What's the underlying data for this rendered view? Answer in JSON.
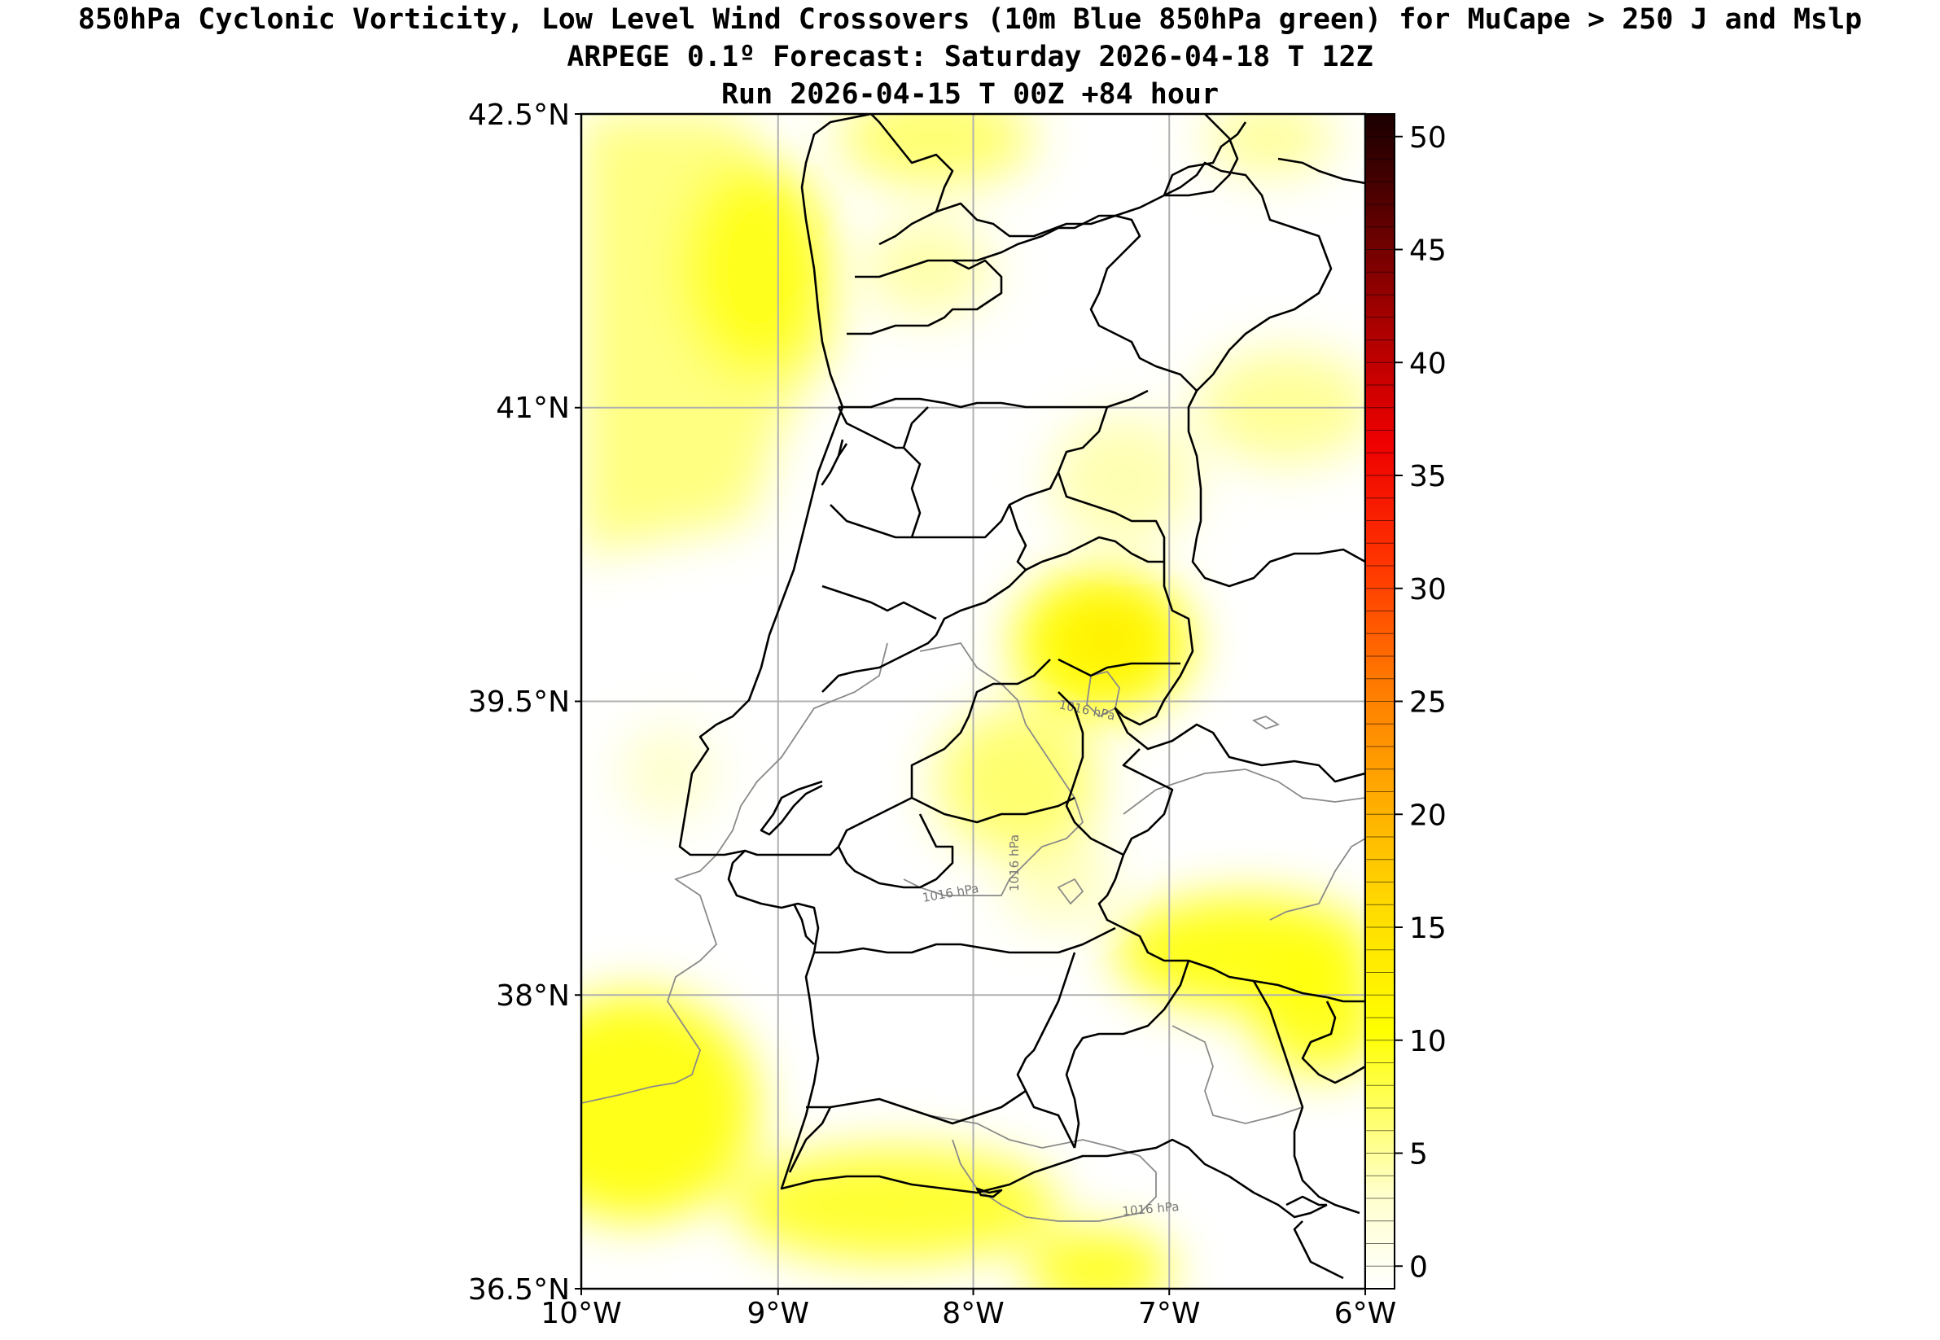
{
  "title": {
    "line1": "850hPa Cyclonic Vorticity, Low Level Wind Crossovers (10m Blue 850hPa green) for MuCape > 250 J and Mslp",
    "line2": "ARPEGE 0.1º Forecast: Saturday 2026-04-18 T 12Z",
    "line3": "Run 2026-04-15 T 00Z +84 hour"
  },
  "map": {
    "region": "Portugal",
    "lon_range": [
      -10,
      -6
    ],
    "lat_range": [
      36.5,
      42.5
    ],
    "lon_ticks": [
      "10°W",
      "9°W",
      "8°W",
      "7°W",
      "6°W"
    ],
    "lat_ticks": [
      "42.5°N",
      "41°N",
      "39.5°N",
      "38°N",
      "36.5°N"
    ],
    "gridlines": true,
    "isobar_labels": [
      "1016 hPa",
      "1016 hPa",
      "1016 hPa",
      "1016 hPa"
    ],
    "colors": {
      "yellow": "#ffff00",
      "coast": "#000000",
      "isobar": "#888888",
      "grid": "#b0b0b0"
    }
  },
  "colorbar": {
    "ticks": [
      "0",
      "5",
      "10",
      "15",
      "20",
      "25",
      "30",
      "35",
      "40",
      "45",
      "50"
    ],
    "min": 0,
    "max": 51,
    "colors": [
      "#ffffff",
      "#ffff99",
      "#ffff00",
      "#ffcc00",
      "#ff9900",
      "#ff6600",
      "#ff2200",
      "#dd0000",
      "#990000",
      "#550000",
      "#1a0000"
    ]
  }
}
